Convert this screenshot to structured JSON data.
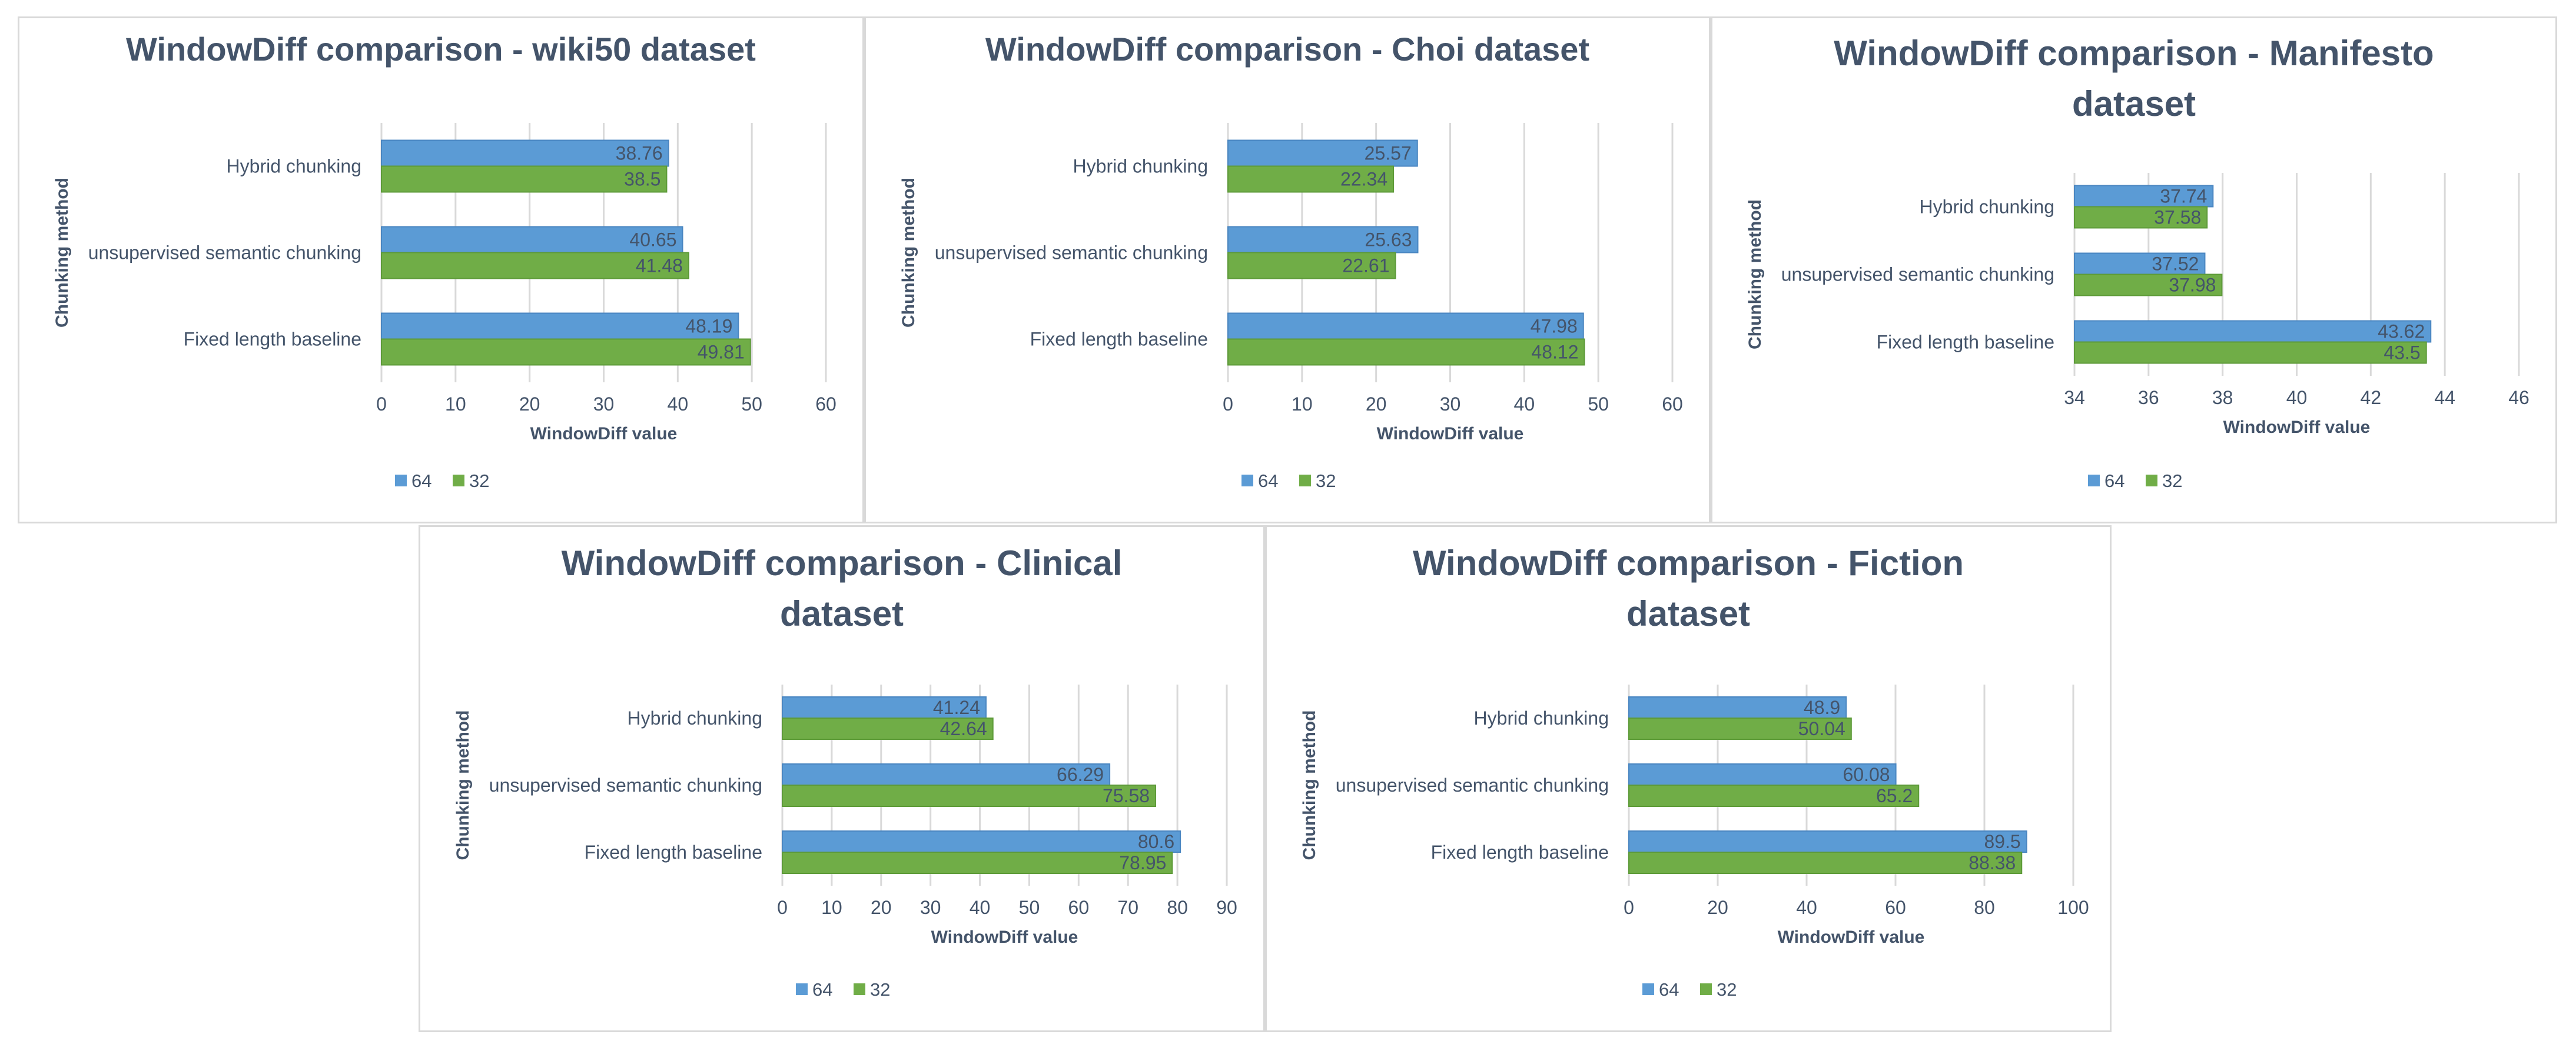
{
  "colors": {
    "series64": "#5b9bd5",
    "series32": "#70ad47",
    "text": "#44546a",
    "grid": "#d9d9d9"
  },
  "chart_data": [
    {
      "type": "bar",
      "orientation": "horizontal",
      "title_lines": [
        "WindowDiff comparison - wiki50 dataset"
      ],
      "categories": [
        "Hybrid chunking",
        "unsupervised semantic chunking",
        "Fixed length baseline"
      ],
      "series": [
        {
          "name": "64",
          "values": [
            38.76,
            40.65,
            48.19
          ]
        },
        {
          "name": "32",
          "values": [
            38.5,
            41.48,
            49.81
          ]
        }
      ],
      "xlabel": "WindowDiff value",
      "ylabel": "Chunking method",
      "xlim": [
        0,
        60
      ],
      "xticks": [
        0,
        10,
        20,
        30,
        40,
        50,
        60
      ],
      "legend": [
        "64",
        "32"
      ],
      "legend_position": "bottom"
    },
    {
      "type": "bar",
      "orientation": "horizontal",
      "title_lines": [
        "WindowDiff comparison - Choi dataset"
      ],
      "categories": [
        "Hybrid chunking",
        "unsupervised semantic chunking",
        "Fixed length baseline"
      ],
      "series": [
        {
          "name": "64",
          "values": [
            25.57,
            25.63,
            47.98
          ]
        },
        {
          "name": "32",
          "values": [
            22.34,
            22.61,
            48.12
          ]
        }
      ],
      "xlabel": "WindowDiff value",
      "ylabel": "Chunking method",
      "xlim": [
        0,
        60
      ],
      "xticks": [
        0,
        10,
        20,
        30,
        40,
        50,
        60
      ],
      "legend": [
        "64",
        "32"
      ],
      "legend_position": "bottom"
    },
    {
      "type": "bar",
      "orientation": "horizontal",
      "title_lines": [
        "WindowDiff comparison - Manifesto",
        "dataset"
      ],
      "categories": [
        "Hybrid chunking",
        "unsupervised semantic chunking",
        "Fixed length baseline"
      ],
      "series": [
        {
          "name": "64",
          "values": [
            37.74,
            37.52,
            43.62
          ]
        },
        {
          "name": "32",
          "values": [
            37.58,
            37.98,
            43.5
          ]
        }
      ],
      "xlabel": "WindowDiff value",
      "ylabel": "Chunking method",
      "xlim": [
        34,
        46
      ],
      "xticks": [
        34,
        36,
        38,
        40,
        42,
        44,
        46
      ],
      "legend": [
        "64",
        "32"
      ],
      "legend_position": "bottom"
    },
    {
      "type": "bar",
      "orientation": "horizontal",
      "title_lines": [
        "WindowDiff comparison - Clinical",
        "dataset"
      ],
      "categories": [
        "Hybrid chunking",
        "unsupervised semantic chunking",
        "Fixed length baseline"
      ],
      "series": [
        {
          "name": "64",
          "values": [
            41.24,
            66.29,
            80.6
          ]
        },
        {
          "name": "32",
          "values": [
            42.64,
            75.58,
            78.95
          ]
        }
      ],
      "xlabel": "WindowDiff value",
      "ylabel": "Chunking method",
      "xlim": [
        0,
        90
      ],
      "xticks": [
        0,
        10,
        20,
        30,
        40,
        50,
        60,
        70,
        80,
        90
      ],
      "legend": [
        "64",
        "32"
      ],
      "legend_position": "bottom"
    },
    {
      "type": "bar",
      "orientation": "horizontal",
      "title_lines": [
        "WindowDiff comparison - Fiction",
        "dataset"
      ],
      "categories": [
        "Hybrid chunking",
        "unsupervised semantic chunking",
        "Fixed length baseline"
      ],
      "series": [
        {
          "name": "64",
          "values": [
            48.9,
            60.08,
            89.5
          ]
        },
        {
          "name": "32",
          "values": [
            50.04,
            65.2,
            88.38
          ]
        }
      ],
      "xlabel": "WindowDiff value",
      "ylabel": "Chunking method",
      "xlim": [
        0,
        100
      ],
      "xticks": [
        0,
        20,
        40,
        60,
        80,
        100
      ],
      "legend": [
        "64",
        "32"
      ],
      "legend_position": "bottom"
    }
  ]
}
